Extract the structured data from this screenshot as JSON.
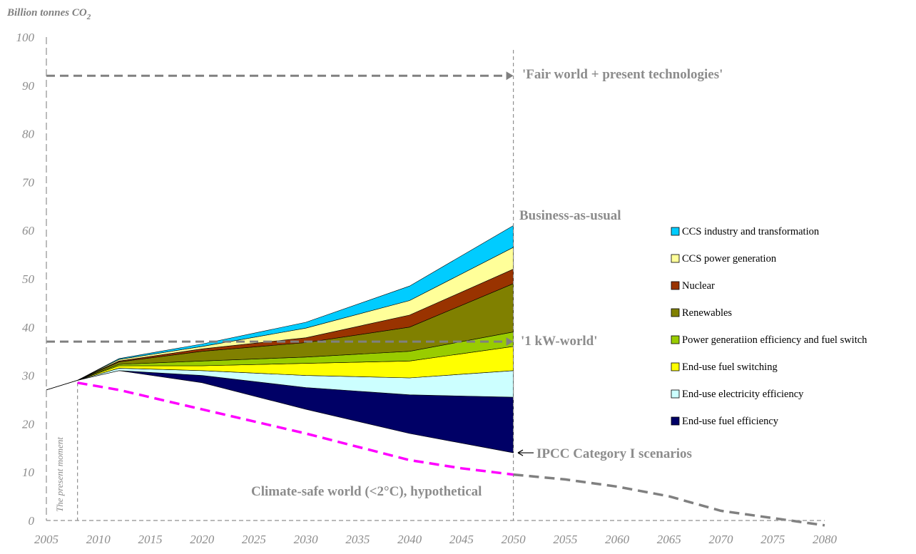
{
  "chart_data": {
    "type": "area",
    "ylabel": "Billion tonnes CO",
    "ylabel_sub": "2",
    "xlim": [
      2005,
      2080
    ],
    "ylim": [
      0,
      100
    ],
    "x_ticks": [
      2005,
      2010,
      2015,
      2020,
      2025,
      2030,
      2035,
      2040,
      2045,
      2050,
      2055,
      2060,
      2065,
      2070,
      2075,
      2080
    ],
    "y_ticks": [
      0,
      10,
      20,
      30,
      40,
      50,
      60,
      70,
      80,
      90,
      100
    ],
    "grid": false,
    "legend_position": "right",
    "x": [
      2005,
      2008,
      2012,
      2020,
      2030,
      2040,
      2050
    ],
    "baseline_lower": [
      27,
      29,
      31,
      28.5,
      23,
      18,
      14
    ],
    "wedges": [
      {
        "name": "End-use fuel efficiency",
        "color": "#000066",
        "values": [
          0,
          0,
          0,
          1.5,
          4.5,
          8,
          11.5
        ]
      },
      {
        "name": "End-use electricity efficiency",
        "color": "#ccffff",
        "values": [
          0,
          0,
          0.5,
          1,
          2.5,
          3.5,
          5.5
        ]
      },
      {
        "name": "End-use fuel switching",
        "color": "#ffff00",
        "values": [
          0,
          0,
          0.5,
          1,
          2.5,
          3.5,
          5
        ]
      },
      {
        "name": "Power generatiion efficiency and fuel switch",
        "color": "#99cc00",
        "values": [
          0,
          0,
          0.3,
          1,
          1.3,
          2,
          3
        ]
      },
      {
        "name": "Renewables",
        "color": "#808000",
        "values": [
          0,
          0,
          0.5,
          2,
          3,
          5,
          10
        ]
      },
      {
        "name": "Nuclear",
        "color": "#993300",
        "values": [
          0,
          0,
          0.2,
          0.5,
          1,
          2.5,
          3
        ]
      },
      {
        "name": "CCS power generation",
        "color": "#ffff99",
        "values": [
          0,
          0,
          0.3,
          0.5,
          2,
          3,
          4.5
        ]
      },
      {
        "name": "CCS industry and transformation",
        "color": "#00ccff",
        "values": [
          0,
          0,
          0.2,
          0.5,
          1.2,
          3,
          4.5
        ]
      }
    ],
    "legend_order": [
      "CCS industry and transformation",
      "CCS power generation",
      "Nuclear",
      "Renewables",
      "Power generatiion efficiency and fuel switch",
      "End-use fuel switching",
      "End-use electricity efficiency",
      "End-use fuel efficiency"
    ],
    "climate_safe_line": {
      "color": "#ff00ff",
      "x": [
        2008,
        2012,
        2020,
        2030,
        2040,
        2045,
        2050
      ],
      "y": [
        28.5,
        27,
        23,
        18,
        12.5,
        10.8,
        9.5
      ]
    },
    "extension_line": {
      "color": "#808080",
      "x": [
        2050,
        2055,
        2060,
        2065,
        2070,
        2075,
        2080
      ],
      "y": [
        9.5,
        8.5,
        7,
        5,
        2,
        0.5,
        -1
      ]
    },
    "fair_world_level": 92,
    "one_kw_level": 37,
    "present_moment_x": 2008,
    "marker_x": 2050,
    "annotations": {
      "fair_world": "'Fair world + present technologies'",
      "bau": "Business-as-usual",
      "one_kw": "'1 kW-world'",
      "ipcc": "IPCC Category I scenarios",
      "climate_safe": "Climate-safe world (<2°C), hypothetical",
      "present_moment": "The present moment"
    }
  }
}
